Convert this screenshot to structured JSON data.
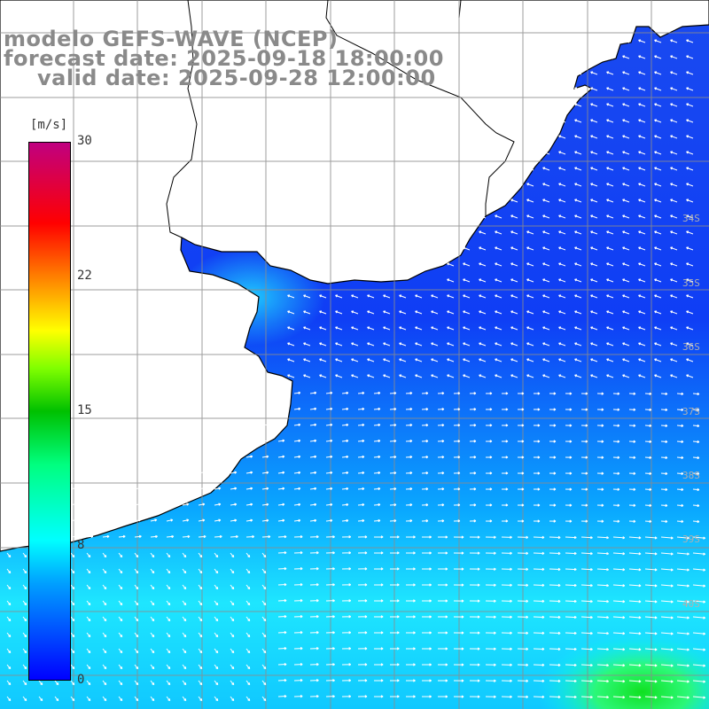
{
  "title": {
    "line1": "modelo GEFS-WAVE (NCEP)",
    "line2": "forecast date: 2025-09-18 18:00:00",
    "line3": "valid date: 2025-09-28 12:00:00"
  },
  "colorbar": {
    "unit": "[m/s]",
    "ticks": [
      "30",
      "22",
      "15",
      "8",
      "0"
    ],
    "colors": [
      "#0000ff",
      "#00a0ff",
      "#00ffff",
      "#00c000",
      "#ffff00",
      "#ff8000",
      "#ff0000",
      "#c00080"
    ]
  },
  "map": {
    "lat_labels": [
      "34S",
      "35S",
      "36S",
      "37S",
      "38S",
      "39S",
      "40S"
    ],
    "land_color": "#ffffff",
    "grid_color": "#8c8c8c",
    "arrow_color": "#ffffff"
  }
}
